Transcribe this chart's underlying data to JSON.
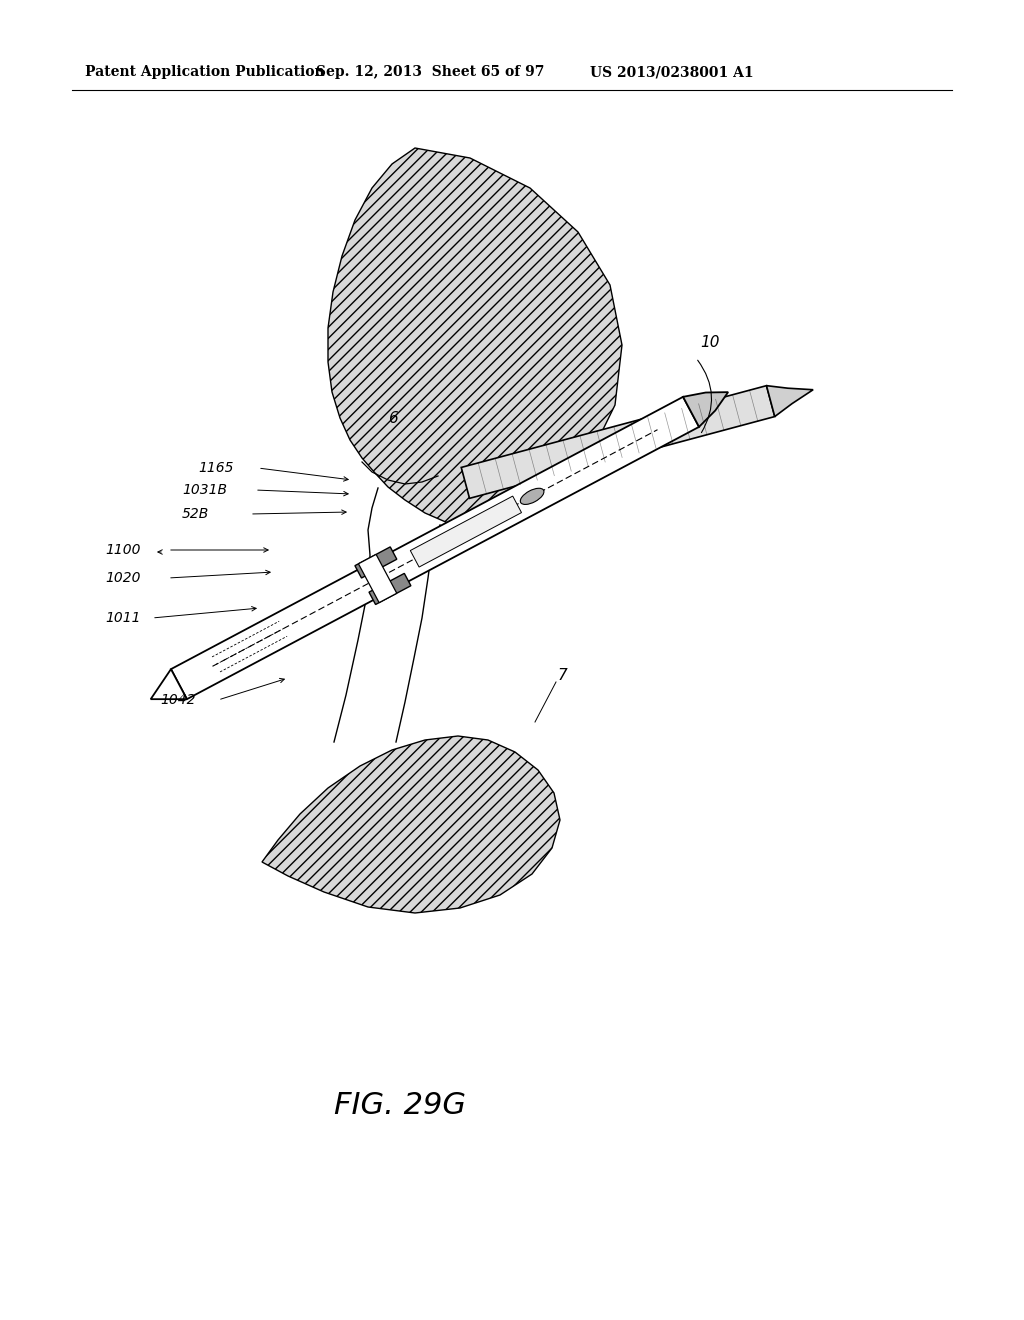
{
  "background_color": "#ffffff",
  "header_left": "Patent Application Publication",
  "header_center": "Sep. 12, 2013  Sheet 65 of 97",
  "header_right": "US 2013/0238001 A1",
  "figure_label": "FIG. 29G",
  "title_fontsize": 22,
  "header_fontsize": 10,
  "label_fontsize": 10
}
